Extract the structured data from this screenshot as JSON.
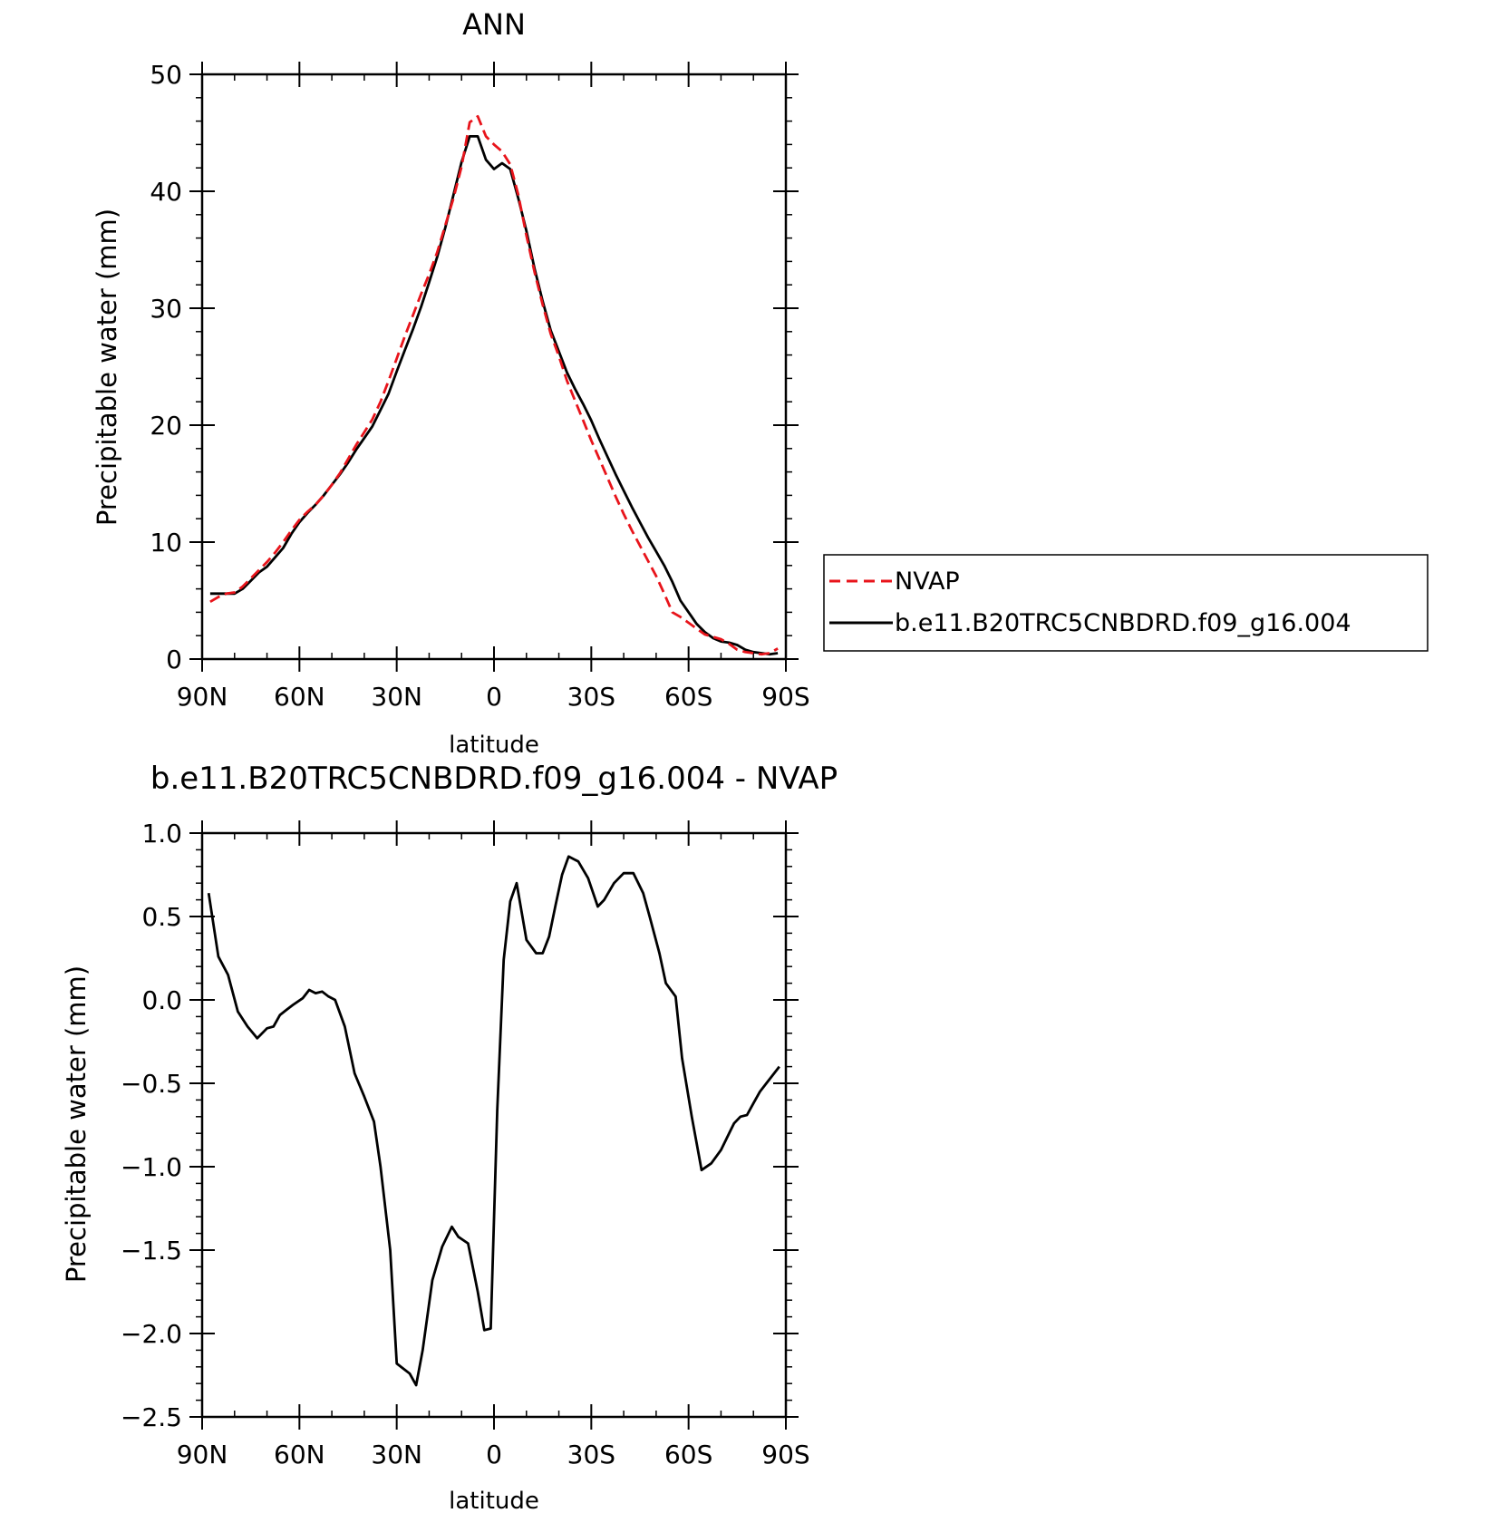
{
  "chart_data": [
    {
      "type": "line",
      "title": "ANN",
      "xlabel": "latitude",
      "ylabel": "Precipitable water (mm)",
      "xlim": [
        -90,
        90
      ],
      "ylim": [
        0,
        50
      ],
      "grid": false,
      "legend_position": "right",
      "xticks": [
        {
          "value": -90,
          "label": "90N"
        },
        {
          "value": -60,
          "label": "60N"
        },
        {
          "value": -30,
          "label": "30N"
        },
        {
          "value": 0,
          "label": "0"
        },
        {
          "value": 30,
          "label": "30S"
        },
        {
          "value": 60,
          "label": "60S"
        },
        {
          "value": 90,
          "label": "90S"
        }
      ],
      "yticks": [
        {
          "value": 0,
          "label": "0"
        },
        {
          "value": 10,
          "label": "10"
        },
        {
          "value": 20,
          "label": "20"
        },
        {
          "value": 30,
          "label": "30"
        },
        {
          "value": 40,
          "label": "40"
        },
        {
          "value": 50,
          "label": "50"
        }
      ],
      "series": [
        {
          "name": "NVAP",
          "color": "#e8141b",
          "dash": "dashed",
          "x": [
            -87.5,
            -85,
            -82.5,
            -80,
            -77.5,
            -75,
            -72.5,
            -70,
            -67.5,
            -65,
            -62.5,
            -60,
            -57.5,
            -55,
            -52.5,
            -50,
            -47.5,
            -45,
            -42.5,
            -40,
            -37.5,
            -35,
            -32.5,
            -30,
            -27.5,
            -25,
            -22.5,
            -20,
            -17.5,
            -15,
            -12.5,
            -10,
            -7.5,
            -5,
            -2.5,
            0,
            2.5,
            5,
            7.5,
            10,
            12.5,
            15,
            17.5,
            20,
            22.5,
            25,
            27.5,
            30,
            32.5,
            35,
            37.5,
            40,
            42.5,
            45,
            47.5,
            50,
            52.5,
            55,
            57.5,
            60,
            62.5,
            65,
            67.5,
            70,
            72.5,
            75,
            77.5,
            80,
            82.5,
            85,
            87.5
          ],
          "values": [
            4.9,
            5.3,
            5.6,
            5.7,
            6.2,
            6.9,
            7.6,
            8.3,
            9.1,
            10.0,
            11.0,
            11.9,
            12.6,
            13.2,
            14.0,
            14.9,
            15.9,
            17.1,
            18.3,
            19.4,
            20.5,
            22.0,
            23.8,
            25.7,
            27.6,
            29.4,
            31.2,
            32.9,
            34.8,
            37.1,
            39.4,
            42.1,
            45.9,
            46.4,
            44.7,
            44.0,
            43.4,
            42.3,
            39.7,
            36.2,
            33.1,
            30.3,
            27.8,
            25.9,
            23.8,
            22.1,
            20.4,
            18.7,
            17.1,
            15.5,
            13.9,
            12.4,
            11.0,
            9.7,
            8.4,
            7.1,
            5.6,
            4.0,
            3.6,
            3.1,
            2.6,
            2.1,
            1.9,
            1.7,
            1.3,
            0.8,
            0.6,
            0.5,
            0.4,
            0.5,
            0.9
          ]
        },
        {
          "name": "b.e11.B20TRC5CNBDRD.f09_g16.004",
          "color": "#000000",
          "dash": "solid",
          "x": [
            -87.5,
            -85,
            -82.5,
            -80,
            -77.5,
            -75,
            -72.5,
            -70,
            -67.5,
            -65,
            -62.5,
            -60,
            -57.5,
            -55,
            -52.5,
            -50,
            -47.5,
            -45,
            -42.5,
            -40,
            -37.5,
            -35,
            -32.5,
            -30,
            -27.5,
            -25,
            -22.5,
            -20,
            -17.5,
            -15,
            -12.5,
            -10,
            -7.5,
            -5,
            -2.5,
            0,
            2.5,
            5,
            7.5,
            10,
            12.5,
            15,
            17.5,
            20,
            22.5,
            25,
            27.5,
            30,
            32.5,
            35,
            37.5,
            40,
            42.5,
            45,
            47.5,
            50,
            52.5,
            55,
            57.5,
            60,
            62.5,
            65,
            67.5,
            70,
            72.5,
            75,
            77.5,
            80,
            82.5,
            85,
            87.5
          ],
          "values": [
            5.6,
            5.6,
            5.6,
            5.6,
            6.0,
            6.7,
            7.4,
            7.9,
            8.7,
            9.5,
            10.7,
            11.7,
            12.5,
            13.2,
            14.0,
            14.9,
            15.8,
            16.8,
            17.9,
            18.9,
            19.9,
            21.3,
            22.7,
            24.6,
            26.4,
            28.2,
            30.1,
            32.2,
            34.4,
            36.9,
            39.7,
            42.5,
            44.7,
            44.7,
            42.7,
            41.9,
            42.4,
            41.9,
            39.4,
            36.6,
            33.4,
            30.6,
            28.1,
            26.3,
            24.5,
            23.1,
            21.8,
            20.4,
            18.8,
            17.3,
            15.8,
            14.4,
            13.0,
            11.7,
            10.4,
            9.2,
            8.0,
            6.6,
            5.0,
            4.0,
            3.0,
            2.3,
            1.8,
            1.5,
            1.4,
            1.2,
            0.8,
            0.6,
            0.5,
            0.4,
            0.5
          ]
        }
      ]
    },
    {
      "type": "line",
      "title": "b.e11.B20TRC5CNBDRD.f09_g16.004 - NVAP",
      "xlabel": "latitude",
      "ylabel": "Precipitable water (mm)",
      "xlim": [
        -90,
        90
      ],
      "ylim": [
        -2.5,
        1.0
      ],
      "grid": false,
      "xticks": [
        {
          "value": -90,
          "label": "90N"
        },
        {
          "value": -60,
          "label": "60N"
        },
        {
          "value": -30,
          "label": "30N"
        },
        {
          "value": 0,
          "label": "0"
        },
        {
          "value": 30,
          "label": "30S"
        },
        {
          "value": 60,
          "label": "60S"
        },
        {
          "value": 90,
          "label": "90S"
        }
      ],
      "yticks": [
        {
          "value": 1.0,
          "label": "1.0"
        },
        {
          "value": 0.5,
          "label": "0.5"
        },
        {
          "value": 0.0,
          "label": "0.0"
        },
        {
          "value": -0.5,
          "label": "-0.5"
        },
        {
          "value": -1.0,
          "label": "-1.0"
        },
        {
          "value": -1.5,
          "label": "-1.5"
        },
        {
          "value": -2.0,
          "label": "-2.0"
        },
        {
          "value": -2.5,
          "label": "-2.5"
        }
      ],
      "series": [
        {
          "color": "#000000",
          "dash": "solid",
          "x": [
            -88,
            -85,
            -82,
            -79,
            -76,
            -73,
            -70,
            -68,
            -66,
            -64,
            -62,
            -59,
            -57,
            -55,
            -53,
            -51,
            -49,
            -46,
            -43,
            -40,
            -37,
            -35,
            -32,
            -30,
            -28,
            -26,
            -24,
            -22,
            -19,
            -16,
            -13,
            -11,
            -8,
            -5,
            -3,
            -1,
            1,
            3,
            5,
            7,
            10,
            13,
            15,
            17,
            19,
            21,
            23,
            26,
            29,
            32,
            34,
            37,
            40,
            43,
            46,
            48,
            51,
            53,
            56,
            58,
            61,
            64,
            67,
            70,
            73,
            74,
            76,
            78,
            80,
            82,
            84,
            86,
            88
          ],
          "values": [
            0.64,
            0.26,
            0.15,
            -0.07,
            -0.16,
            -0.23,
            -0.17,
            -0.16,
            -0.09,
            -0.06,
            -0.03,
            0.01,
            0.06,
            0.04,
            0.05,
            0.02,
            0.0,
            -0.16,
            -0.44,
            -0.58,
            -0.73,
            -1.0,
            -1.5,
            -2.18,
            -2.21,
            -2.24,
            -2.31,
            -2.1,
            -1.68,
            -1.48,
            -1.36,
            -1.42,
            -1.46,
            -1.75,
            -1.98,
            -1.97,
            -0.66,
            0.24,
            0.59,
            0.7,
            0.36,
            0.28,
            0.28,
            0.38,
            0.57,
            0.75,
            0.86,
            0.83,
            0.73,
            0.56,
            0.6,
            0.7,
            0.76,
            0.76,
            0.64,
            0.5,
            0.28,
            0.1,
            0.02,
            -0.35,
            -0.7,
            -1.02,
            -0.98,
            -0.9,
            -0.78,
            -0.74,
            -0.7,
            -0.69,
            -0.62,
            -0.55,
            -0.5,
            -0.45,
            -0.4
          ]
        }
      ]
    }
  ],
  "legend": {
    "items": [
      {
        "label": "NVAP",
        "color": "#e8141b",
        "dash": "dashed"
      },
      {
        "label": "b.e11.B20TRC5CNBDRD.f09_g16.004",
        "color": "#000000",
        "dash": "solid"
      }
    ]
  }
}
